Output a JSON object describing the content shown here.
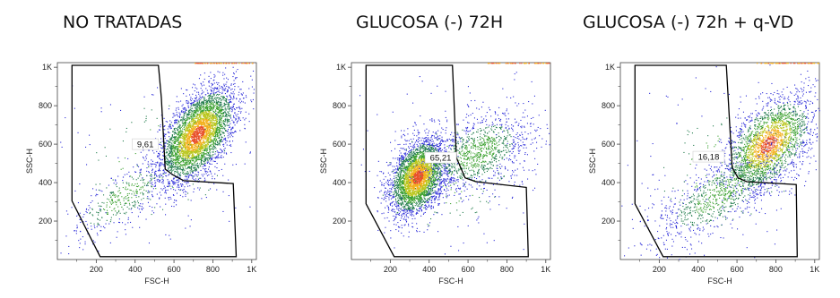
{
  "chart_data": [
    {
      "type": "scatter",
      "title": "NO TRATADAS",
      "xlabel": "FSC-H",
      "ylabel": "SSC-H",
      "xlim": [
        0,
        1024
      ],
      "ylim": [
        0,
        1024
      ],
      "xticks": [
        {
          "v": 200,
          "label": "200"
        },
        {
          "v": 400,
          "label": "400"
        },
        {
          "v": 600,
          "label": "600"
        },
        {
          "v": 800,
          "label": "800"
        },
        {
          "v": 1000,
          "label": "1K"
        }
      ],
      "yticks": [
        {
          "v": 200,
          "label": "200"
        },
        {
          "v": 400,
          "label": "400"
        },
        {
          "v": 600,
          "label": "600"
        },
        {
          "v": 800,
          "label": "800"
        },
        {
          "v": 1000,
          "label": "1K"
        }
      ],
      "gate_label": "9,61",
      "gate_label_pos": [
        520,
        600
      ],
      "gate_polygon": [
        [
          75,
          1010
        ],
        [
          75,
          305
        ],
        [
          220,
          15
        ],
        [
          920,
          15
        ],
        [
          905,
          395
        ],
        [
          650,
          410
        ],
        [
          595,
          440
        ],
        [
          555,
          470
        ],
        [
          535,
          840
        ],
        [
          520,
          1010
        ]
      ],
      "populations": [
        {
          "cx": 720,
          "cy": 650,
          "sx": 95,
          "sy": 120,
          "rho": 0.55,
          "n": 4200
        },
        {
          "cx": 330,
          "cy": 320,
          "sx": 140,
          "sy": 110,
          "rho": 0.75,
          "n": 420
        },
        {
          "cx": 520,
          "cy": 520,
          "sx": 280,
          "sy": 250,
          "rho": 0.2,
          "n": 180
        }
      ]
    },
    {
      "type": "scatter",
      "title": "GLUCOSA (-) 72H",
      "xlabel": "FSC-H",
      "ylabel": "SSC-H",
      "xlim": [
        0,
        1024
      ],
      "ylim": [
        0,
        1024
      ],
      "xticks": [
        {
          "v": 200,
          "label": "200"
        },
        {
          "v": 400,
          "label": "400"
        },
        {
          "v": 600,
          "label": "600"
        },
        {
          "v": 800,
          "label": "800"
        },
        {
          "v": 1000,
          "label": "1K"
        }
      ],
      "yticks": [
        {
          "v": 200,
          "label": "200"
        },
        {
          "v": 400,
          "label": "400"
        },
        {
          "v": 600,
          "label": "600"
        },
        {
          "v": 800,
          "label": "800"
        },
        {
          "v": 1000,
          "label": "1K"
        }
      ],
      "gate_label": "65,21",
      "gate_label_pos": [
        540,
        530
      ],
      "gate_polygon": [
        [
          75,
          1010
        ],
        [
          75,
          290
        ],
        [
          220,
          15
        ],
        [
          910,
          15
        ],
        [
          900,
          375
        ],
        [
          640,
          405
        ],
        [
          585,
          425
        ],
        [
          540,
          530
        ],
        [
          520,
          1010
        ]
      ],
      "populations": [
        {
          "cx": 340,
          "cy": 430,
          "sx": 70,
          "sy": 95,
          "rho": 0.35,
          "n": 3600
        },
        {
          "cx": 650,
          "cy": 560,
          "sx": 140,
          "sy": 110,
          "rho": 0.45,
          "n": 1100
        },
        {
          "cx": 480,
          "cy": 430,
          "sx": 260,
          "sy": 220,
          "rho": 0.2,
          "n": 260
        }
      ]
    },
    {
      "type": "scatter",
      "title": "GLUCOSA (-) 72h + q-VD",
      "xlabel": "FSC-H",
      "ylabel": "SSC-H",
      "xlim": [
        0,
        1024
      ],
      "ylim": [
        0,
        1024
      ],
      "xticks": [
        {
          "v": 200,
          "label": "200"
        },
        {
          "v": 400,
          "label": "400"
        },
        {
          "v": 600,
          "label": "600"
        },
        {
          "v": 800,
          "label": "800"
        },
        {
          "v": 1000,
          "label": "1K"
        }
      ],
      "yticks": [
        {
          "v": 200,
          "label": "200"
        },
        {
          "v": 400,
          "label": "400"
        },
        {
          "v": 600,
          "label": "600"
        },
        {
          "v": 800,
          "label": "800"
        },
        {
          "v": 1000,
          "label": "1K"
        }
      ],
      "gate_label": "16,18",
      "gate_label_pos": [
        535,
        535
      ],
      "gate_polygon": [
        [
          75,
          1010
        ],
        [
          75,
          290
        ],
        [
          220,
          15
        ],
        [
          910,
          15
        ],
        [
          905,
          390
        ],
        [
          650,
          405
        ],
        [
          605,
          425
        ],
        [
          575,
          480
        ],
        [
          545,
          1010
        ]
      ],
      "populations": [
        {
          "cx": 760,
          "cy": 600,
          "sx": 110,
          "sy": 120,
          "rho": 0.5,
          "n": 2400
        },
        {
          "cx": 520,
          "cy": 340,
          "sx": 180,
          "sy": 130,
          "rho": 0.75,
          "n": 900
        },
        {
          "cx": 560,
          "cy": 480,
          "sx": 280,
          "sy": 250,
          "rho": 0.2,
          "n": 220
        }
      ]
    }
  ],
  "colors": {
    "gate_line": "#000000",
    "axis_line": "#444444",
    "density": [
      "#2a2ad8",
      "#1e7a4a",
      "#3aa02e",
      "#b8c51a",
      "#f2b01b",
      "#e8502a"
    ]
  }
}
